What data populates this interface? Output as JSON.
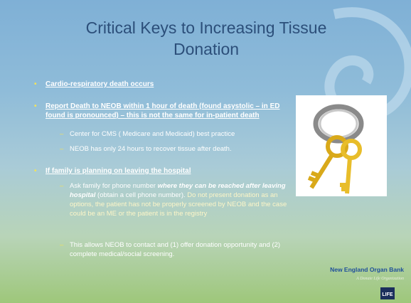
{
  "title": "Critical Keys to Increasing Tissue Donation",
  "bullets": [
    {
      "text": "Cardio-respiratory death occurs"
    },
    {
      "text": "Report Death to NEOB within 1 hour of death (found asystolic – in ED found is pronounced) – this is not the same for in-patient death",
      "sub": [
        "Center for CMS ( Medicare and Medicaid)  best practice",
        "NEOB has only 24 hours to recover tissue after death."
      ]
    },
    {
      "text": "If family is planning on leaving the hospital",
      "sub_runs": [
        "Ask family for phone number ",
        "where they can be reached after leaving hospital",
        " (obtain a cell phone number).  ",
        "Do not present donation as an options, the patient has not be properly screened by NEOB and the case could be an ME or the patient is in the registry"
      ],
      "sub": [
        "This allows NEOB to contact and (1) offer donation opportunity and (2) complete medical/social screening."
      ]
    }
  ],
  "footer": {
    "org": "New England Organ Bank",
    "tagline": "A Donate Life Organization",
    "logo": "LIFE"
  }
}
